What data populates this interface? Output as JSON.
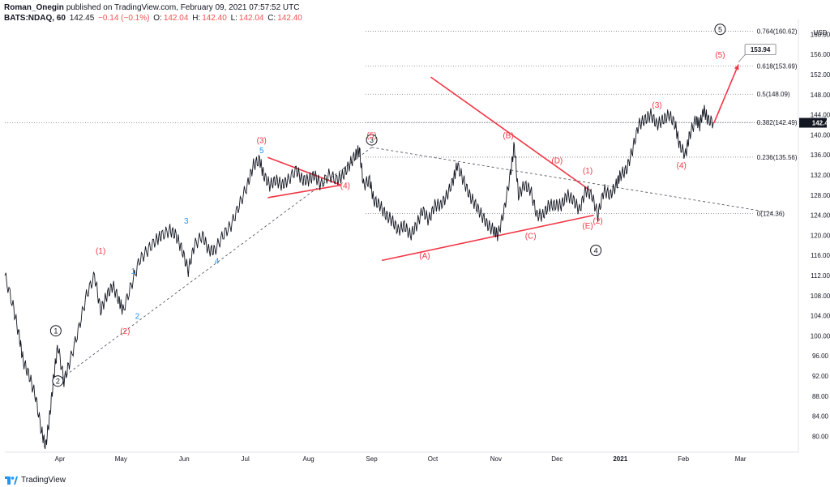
{
  "header": {
    "author": "Roman_Onegin",
    "published": "published on TradingView.com, February 09, 2021 07:57:52 UTC",
    "symbol": "BATS:NDAQ, 60",
    "last": "142.45",
    "change": "−0.14 (−0.1%)",
    "o_label": "O:",
    "o_value": "142.04",
    "h_label": "H:",
    "h_value": "142.40",
    "l_label": "L:",
    "l_value": "142.04",
    "c_label": "C:",
    "c_value": "142.40"
  },
  "footer": {
    "brand": "TradingView"
  },
  "colors": {
    "red": "#f23645",
    "blue": "#2196f3",
    "black": "#131722",
    "grid": "#787b86"
  },
  "chart_data": {
    "type": "line",
    "currency": "USD",
    "title": "BATS:NDAQ, 60",
    "last_price_label": "142.40",
    "ylim": [
      77,
      162
    ],
    "y_ticks": [
      80,
      84,
      88,
      92,
      96,
      100,
      104,
      108,
      112,
      116,
      120,
      124,
      128,
      132,
      136,
      140,
      144,
      148,
      152,
      156,
      160
    ],
    "x_ticks": [
      {
        "label": "Apr",
        "t": 18
      },
      {
        "label": "May",
        "t": 48
      },
      {
        "label": "Jun",
        "t": 79
      },
      {
        "label": "Jul",
        "t": 109
      },
      {
        "label": "Aug",
        "t": 140
      },
      {
        "label": "Sep",
        "t": 171
      },
      {
        "label": "Oct",
        "t": 201
      },
      {
        "label": "Nov",
        "t": 232
      },
      {
        "label": "Dec",
        "t": 262
      },
      {
        "label": "2021",
        "t": 293
      },
      {
        "label": "Feb",
        "t": 324
      },
      {
        "label": "Mar",
        "t": 352
      }
    ],
    "xlim": [
      -9,
      380
    ],
    "series": [
      {
        "name": "NDAQ price",
        "points": [
          [
            -9,
            112
          ],
          [
            -5,
            106
          ],
          [
            -2,
            100
          ],
          [
            0,
            95
          ],
          [
            3,
            92
          ],
          [
            6,
            88
          ],
          [
            9,
            81
          ],
          [
            11,
            78
          ],
          [
            13,
            84
          ],
          [
            15,
            92
          ],
          [
            17,
            98
          ],
          [
            20,
            91
          ],
          [
            23,
            95
          ],
          [
            27,
            101
          ],
          [
            31,
            108
          ],
          [
            35,
            112
          ],
          [
            38,
            105
          ],
          [
            41,
            108
          ],
          [
            44,
            110
          ],
          [
            47,
            107
          ],
          [
            49,
            105
          ],
          [
            53,
            110
          ],
          [
            57,
            115
          ],
          [
            61,
            117
          ],
          [
            65,
            119
          ],
          [
            68,
            120
          ],
          [
            72,
            121
          ],
          [
            75,
            120
          ],
          [
            78,
            117
          ],
          [
            81,
            113
          ],
          [
            84,
            118
          ],
          [
            88,
            120
          ],
          [
            91,
            117
          ],
          [
            94,
            117
          ],
          [
            98,
            120
          ],
          [
            102,
            122
          ],
          [
            106,
            126
          ],
          [
            110,
            130
          ],
          [
            113,
            134
          ],
          [
            116,
            135
          ],
          [
            118,
            132
          ],
          [
            121,
            130
          ],
          [
            124,
            131
          ],
          [
            127,
            130
          ],
          [
            130,
            131
          ],
          [
            134,
            133
          ],
          [
            137,
            131
          ],
          [
            140,
            131
          ],
          [
            143,
            132
          ],
          [
            146,
            130
          ],
          [
            150,
            132
          ],
          [
            154,
            131
          ],
          [
            157,
            132
          ],
          [
            160,
            134
          ],
          [
            163,
            136
          ],
          [
            165,
            137
          ],
          [
            167,
            130
          ],
          [
            170,
            131
          ],
          [
            172,
            127
          ],
          [
            175,
            126
          ],
          [
            178,
            124
          ],
          [
            181,
            123
          ],
          [
            184,
            121
          ],
          [
            187,
            122
          ],
          [
            190,
            120
          ],
          [
            193,
            122
          ],
          [
            196,
            125
          ],
          [
            199,
            123
          ],
          [
            202,
            126
          ],
          [
            205,
            126
          ],
          [
            208,
            128
          ],
          [
            211,
            131
          ],
          [
            213,
            134
          ],
          [
            216,
            131
          ],
          [
            219,
            128
          ],
          [
            222,
            126
          ],
          [
            225,
            124
          ],
          [
            228,
            122
          ],
          [
            231,
            121
          ],
          [
            233,
            120
          ],
          [
            236,
            125
          ],
          [
            239,
            132
          ],
          [
            241,
            138
          ],
          [
            243,
            128
          ],
          [
            246,
            130
          ],
          [
            249,
            129
          ],
          [
            252,
            124
          ],
          [
            255,
            124
          ],
          [
            258,
            126
          ],
          [
            261,
            126
          ],
          [
            264,
            126
          ],
          [
            267,
            128
          ],
          [
            270,
            127
          ],
          [
            273,
            125
          ],
          [
            276,
            129
          ],
          [
            279,
            128
          ],
          [
            282,
            124
          ],
          [
            285,
            129
          ],
          [
            288,
            128
          ],
          [
            291,
            130
          ],
          [
            293,
            132
          ],
          [
            296,
            133
          ],
          [
            299,
            137
          ],
          [
            302,
            142
          ],
          [
            305,
            143
          ],
          [
            308,
            144
          ],
          [
            311,
            142
          ],
          [
            314,
            143
          ],
          [
            317,
            144
          ],
          [
            320,
            142
          ],
          [
            322,
            138
          ],
          [
            325,
            136
          ],
          [
            327,
            140
          ],
          [
            330,
            143
          ],
          [
            332,
            142
          ],
          [
            334,
            145
          ],
          [
            336,
            143
          ],
          [
            339,
            142.4
          ]
        ]
      }
    ],
    "projection": [
      [
        339,
        142.4
      ],
      [
        351,
        154
      ]
    ],
    "projection_label": "153.94",
    "fib_levels": [
      {
        "label": "0.764(160.62)",
        "price": 160.62
      },
      {
        "label": "0.618(153.69)",
        "price": 153.69
      },
      {
        "label": "0.5(148.09)",
        "price": 148.09
      },
      {
        "label": "0.382(142.49)",
        "price": 142.49
      },
      {
        "label": "0.236(135.56)",
        "price": 135.56
      },
      {
        "label": "0(124.36)",
        "price": 124.36
      }
    ],
    "trendlines": [
      {
        "name": "channel-dashed",
        "style": "dashed",
        "from": [
          17,
          91
        ],
        "to": [
          171,
          137.5
        ]
      },
      {
        "name": "b-d-dashed",
        "style": "dashed",
        "from": [
          171,
          137.5
        ],
        "to": [
          369,
          124.4
        ]
      },
      {
        "name": "wave4-top",
        "style": "red",
        "from": [
          120,
          135.5
        ],
        "to": [
          156,
          130
        ]
      },
      {
        "name": "wave4-bottom",
        "style": "red",
        "from": [
          120,
          127.5
        ],
        "to": [
          156,
          130
        ]
      },
      {
        "name": "triangle-bd",
        "style": "red",
        "from": [
          200,
          151.5
        ],
        "to": [
          278,
          129
        ]
      },
      {
        "name": "triangle-ace",
        "style": "red",
        "from": [
          176,
          115
        ],
        "to": [
          280,
          124
        ]
      }
    ],
    "annotations": [
      {
        "text": "1",
        "price": 101,
        "t": 16,
        "style": "circle"
      },
      {
        "text": "2",
        "price": 91,
        "t": 17,
        "style": "circle"
      },
      {
        "text": "3",
        "price": 139,
        "t": 171,
        "style": "circle"
      },
      {
        "text": "4",
        "price": 117,
        "t": 281,
        "style": "circle"
      },
      {
        "text": "5",
        "price": 161,
        "t": 342,
        "style": "circle"
      },
      {
        "text": "(1)",
        "price": 117,
        "t": 38,
        "style": "red"
      },
      {
        "text": "(2)",
        "price": 101,
        "t": 50,
        "style": "red"
      },
      {
        "text": "(3)",
        "price": 139,
        "t": 117,
        "style": "red"
      },
      {
        "text": "(4)",
        "price": 130,
        "t": 158,
        "style": "red"
      },
      {
        "text": "(5)",
        "price": 140,
        "t": 171,
        "style": "red"
      },
      {
        "text": "1",
        "price": 113,
        "t": 54,
        "style": "blue"
      },
      {
        "text": "2",
        "price": 104,
        "t": 56,
        "style": "blue"
      },
      {
        "text": "3",
        "price": 123,
        "t": 80,
        "style": "blue"
      },
      {
        "text": "4",
        "price": 115,
        "t": 95,
        "style": "blue"
      },
      {
        "text": "5",
        "price": 137,
        "t": 117,
        "style": "blue"
      },
      {
        "text": "(A)",
        "price": 116,
        "t": 197,
        "style": "red"
      },
      {
        "text": "(B)",
        "price": 140,
        "t": 238,
        "style": "red"
      },
      {
        "text": "(C)",
        "price": 120,
        "t": 249,
        "style": "red"
      },
      {
        "text": "(D)",
        "price": 135,
        "t": 262,
        "style": "red"
      },
      {
        "text": "(E)",
        "price": 122,
        "t": 277,
        "style": "red"
      },
      {
        "text": "(1)",
        "price": 133,
        "t": 277,
        "style": "red"
      },
      {
        "text": "(2)",
        "price": 123,
        "t": 282,
        "style": "red"
      },
      {
        "text": "(3)",
        "price": 146,
        "t": 311,
        "style": "red"
      },
      {
        "text": "(4)",
        "price": 134,
        "t": 323,
        "style": "red"
      },
      {
        "text": "(5)",
        "price": 156,
        "t": 342,
        "style": "red"
      }
    ]
  }
}
